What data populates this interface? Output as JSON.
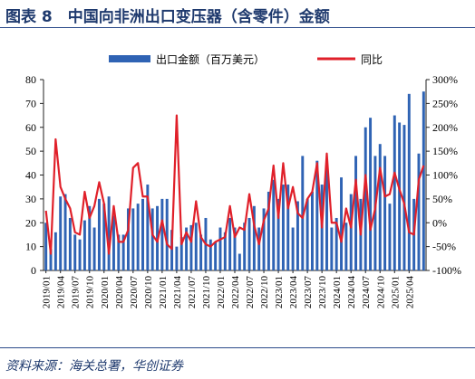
{
  "figure": {
    "title": "图表 8　中国向非洲出口变压器（含零件）金额",
    "source": "资料来源：海关总署，华创证券"
  },
  "colors": {
    "bar": "#2f63b4",
    "line": "#e0202a",
    "axis": "#222222",
    "title": "#1f3a6e"
  },
  "chart_data": {
    "type": "bar",
    "title": "",
    "legend_position": "top",
    "grid": false,
    "y_left": {
      "label": "",
      "range": [
        0,
        80
      ],
      "ticks": [
        "0",
        "10",
        "20",
        "30",
        "40",
        "50",
        "60",
        "70",
        "80"
      ]
    },
    "y_right": {
      "label": "",
      "range": [
        -100,
        300
      ],
      "ticks": [
        "-100%",
        "-50%",
        "0%",
        "50%",
        "100%",
        "150%",
        "200%",
        "250%",
        "300%"
      ]
    },
    "x_tick_labels": [
      "2019/01",
      "2019/04",
      "2019/07",
      "2019/10",
      "2020/01",
      "2020/04",
      "2020/07",
      "2020/10",
      "2021/01",
      "2021/04",
      "2021/07",
      "2021/10",
      "2022/01",
      "2022/04",
      "2022/07",
      "2022/10",
      "2023/01",
      "2023/04",
      "2023/07",
      "2023/10",
      "2024/01",
      "2024/04",
      "2024/07",
      "2024/10",
      "2025/01",
      "2025/04"
    ],
    "series": [
      {
        "name": "出口金额（百万美元）",
        "type": "bar",
        "axis": "left",
        "values": [
          20,
          9,
          16,
          31,
          32,
          22,
          15,
          13,
          21,
          27,
          18,
          30,
          28,
          31,
          23,
          15,
          15,
          26,
          26,
          28,
          30,
          36,
          26,
          27,
          30,
          30,
          17,
          10,
          14,
          18,
          19,
          20,
          15,
          22,
          13,
          12,
          18,
          16,
          22,
          18,
          7,
          20,
          22,
          27,
          18,
          26,
          33,
          38,
          30,
          36,
          36,
          18,
          29,
          48,
          30,
          33,
          46,
          36,
          44,
          18,
          22,
          39,
          20,
          32,
          48,
          30,
          60,
          64,
          48,
          53,
          48,
          28,
          65,
          62,
          61,
          74,
          30,
          49,
          75
        ]
      },
      {
        "name": "同比",
        "type": "line",
        "axis": "right",
        "values": [
          25,
          -65,
          175,
          75,
          50,
          30,
          -20,
          -25,
          65,
          10,
          35,
          85,
          40,
          -65,
          35,
          -40,
          -40,
          -15,
          115,
          125,
          55,
          55,
          -25,
          -40,
          5,
          -45,
          -55,
          225,
          -45,
          -20,
          -40,
          45,
          -30,
          -45,
          -50,
          -40,
          -35,
          -30,
          35,
          -30,
          -10,
          -15,
          60,
          -5,
          -45,
          5,
          30,
          120,
          10,
          125,
          30,
          75,
          20,
          10,
          50,
          65,
          125,
          -10,
          145,
          0,
          0,
          -40,
          30,
          -10,
          90,
          -25,
          100,
          -15,
          30,
          115,
          55,
          60,
          105,
          70,
          40,
          -20,
          -25,
          90,
          120
        ]
      }
    ]
  }
}
